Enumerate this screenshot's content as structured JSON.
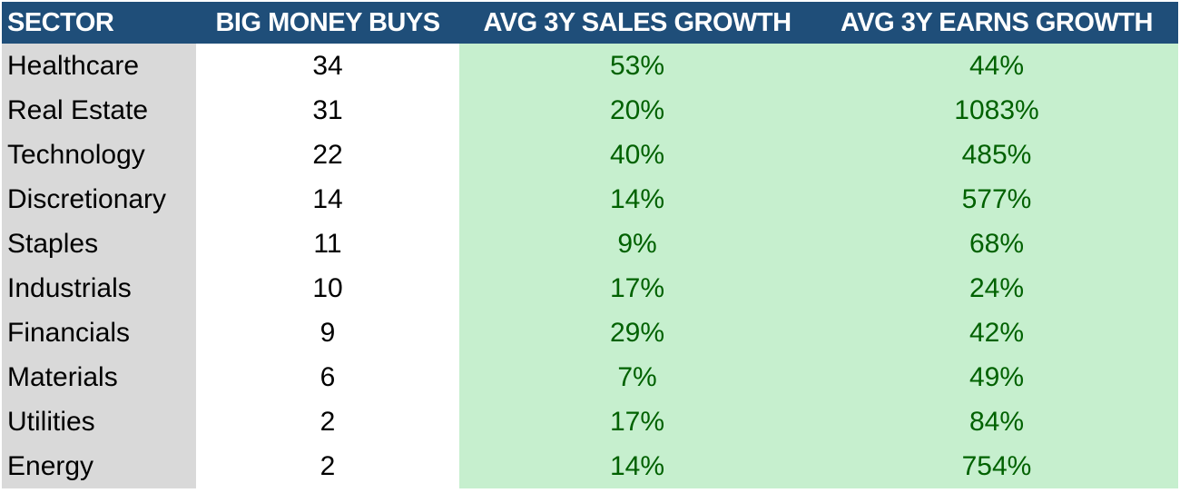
{
  "colors": {
    "header_bg": "#1f4e79",
    "header_text": "#ffffff",
    "sector_bg": "#d9d9d9",
    "growth_bg": "#c6efce",
    "growth_text": "#006100"
  },
  "headers": {
    "sector": "SECTOR",
    "big_money_buys": "BIG MONEY BUYS",
    "avg_3y_sales_growth": "AVG 3Y SALES GROWTH",
    "avg_3y_earns_growth": "AVG 3Y EARNS GROWTH"
  },
  "rows": [
    {
      "sector": "Healthcare",
      "buys": "34",
      "sales_growth": "53%",
      "earns_growth": "44%"
    },
    {
      "sector": "Real Estate",
      "buys": "31",
      "sales_growth": "20%",
      "earns_growth": "1083%"
    },
    {
      "sector": "Technology",
      "buys": "22",
      "sales_growth": "40%",
      "earns_growth": "485%"
    },
    {
      "sector": "Discretionary",
      "buys": "14",
      "sales_growth": "14%",
      "earns_growth": "577%"
    },
    {
      "sector": "Staples",
      "buys": "11",
      "sales_growth": "9%",
      "earns_growth": "68%"
    },
    {
      "sector": "Industrials",
      "buys": "10",
      "sales_growth": "17%",
      "earns_growth": "24%"
    },
    {
      "sector": "Financials",
      "buys": "9",
      "sales_growth": "29%",
      "earns_growth": "42%"
    },
    {
      "sector": "Materials",
      "buys": "6",
      "sales_growth": "7%",
      "earns_growth": "49%"
    },
    {
      "sector": "Utilities",
      "buys": "2",
      "sales_growth": "17%",
      "earns_growth": "84%"
    },
    {
      "sector": "Energy",
      "buys": "2",
      "sales_growth": "14%",
      "earns_growth": "754%"
    }
  ]
}
